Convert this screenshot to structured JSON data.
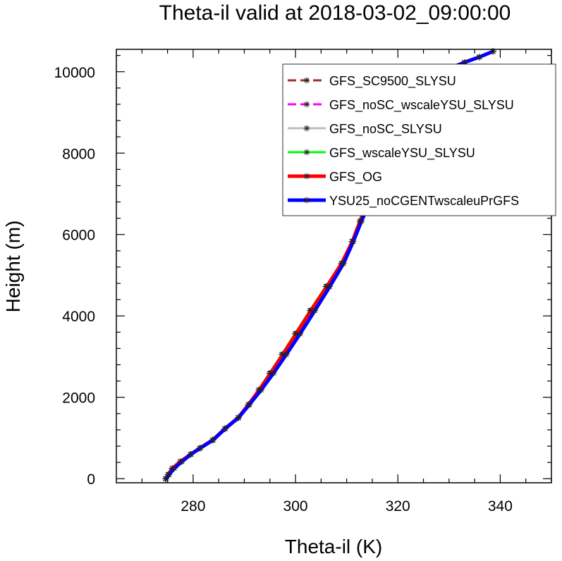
{
  "chart_data": {
    "type": "line",
    "title": "Theta-il valid at 2018-03-02_09:00:00",
    "xlabel": "Theta-il (K)",
    "ylabel": "Height (m)",
    "xlim": [
      265,
      350
    ],
    "ylim": [
      -100,
      10550
    ],
    "xticks": [
      280,
      300,
      320,
      340
    ],
    "yticks": [
      0,
      2000,
      4000,
      6000,
      8000,
      10000
    ],
    "grid": false,
    "legend_position": "top-right",
    "series": [
      {
        "name": "GFS_SC9500_SLYSU",
        "color": "#a52a2a",
        "dash": "12,6",
        "width": 3,
        "x": [
          274.7,
          275.1,
          275.9,
          277.5,
          279.5,
          281.3,
          283.8,
          286.2,
          288.8,
          290.8,
          293.0,
          295.3,
          297.7,
          300.3,
          303.2,
          306.2,
          309.1,
          311.1,
          312.6,
          314.2,
          315.3,
          316.2,
          316.8,
          317.1,
          317.4,
          319.9,
          322.5,
          325.5,
          329.0,
          333.0,
          335.9,
          338.6
        ],
        "y": [
          0,
          100,
          250,
          420,
          600,
          750,
          950,
          1230,
          1500,
          1820,
          2180,
          2590,
          3050,
          3560,
          4130,
          4720,
          5290,
          5830,
          6330,
          6820,
          7300,
          7780,
          8230,
          8630,
          8930,
          9330,
          9580,
          9820,
          10020,
          10230,
          10360,
          10500
        ]
      },
      {
        "name": "GFS_noSC_wscaleYSU_SLYSU",
        "color": "#ff00ff",
        "dash": "12,6",
        "width": 3,
        "x": [
          274.7,
          275.1,
          275.9,
          277.5,
          279.5,
          281.3,
          283.8,
          286.2,
          288.8,
          290.8,
          292.9,
          295.1,
          297.5,
          300.1,
          303.0,
          306.1,
          309.0,
          311.1,
          312.6,
          314.2,
          315.3,
          316.2,
          316.8,
          317.1,
          317.4,
          319.9,
          322.5,
          325.5,
          329.0,
          333.0,
          335.9,
          338.6
        ],
        "y": [
          0,
          100,
          250,
          420,
          600,
          750,
          950,
          1230,
          1500,
          1820,
          2180,
          2590,
          3050,
          3560,
          4130,
          4720,
          5290,
          5830,
          6330,
          6820,
          7300,
          7780,
          8230,
          8630,
          8930,
          9330,
          9580,
          9820,
          10020,
          10230,
          10360,
          10500
        ]
      },
      {
        "name": "GFS_noSC_SLYSU",
        "color": "#bebebe",
        "dash": "",
        "width": 3,
        "x": [
          274.7,
          275.1,
          275.9,
          277.5,
          279.5,
          281.3,
          283.8,
          286.2,
          288.8,
          290.8,
          292.9,
          295.2,
          297.6,
          300.2,
          303.1,
          306.1,
          309.0,
          311.1,
          312.6,
          314.2,
          315.3,
          316.2,
          316.8,
          317.1,
          317.4,
          319.9,
          322.5,
          325.5,
          329.0,
          333.0,
          335.9,
          338.6
        ],
        "y": [
          0,
          100,
          250,
          420,
          600,
          750,
          950,
          1230,
          1500,
          1820,
          2180,
          2590,
          3050,
          3560,
          4130,
          4720,
          5290,
          5830,
          6330,
          6820,
          7300,
          7780,
          8230,
          8630,
          8930,
          9330,
          9580,
          9820,
          10020,
          10230,
          10360,
          10500
        ]
      },
      {
        "name": "GFS_wscaleYSU_SLYSU",
        "color": "#00ff00",
        "dash": "",
        "width": 3,
        "x": [
          274.7,
          275.1,
          275.9,
          277.5,
          279.5,
          281.3,
          283.8,
          286.2,
          288.8,
          290.8,
          292.8,
          294.9,
          297.3,
          299.9,
          302.8,
          305.9,
          309.0,
          311.0,
          312.6,
          314.2,
          315.3,
          316.2,
          316.8,
          317.1,
          317.4,
          319.9,
          322.5,
          325.5,
          329.0,
          333.0,
          335.9,
          338.6
        ],
        "y": [
          0,
          100,
          250,
          420,
          600,
          750,
          950,
          1230,
          1500,
          1820,
          2180,
          2590,
          3050,
          3560,
          4130,
          4720,
          5290,
          5830,
          6330,
          6820,
          7300,
          7780,
          8230,
          8630,
          8930,
          9330,
          9580,
          9820,
          10020,
          10230,
          10360,
          10500
        ]
      },
      {
        "name": "GFS_OG",
        "color": "#ff0000",
        "dash": "",
        "width": 5,
        "x": [
          274.7,
          275.1,
          275.9,
          277.5,
          279.5,
          281.3,
          283.8,
          286.2,
          288.8,
          290.8,
          292.9,
          295.1,
          297.5,
          300.1,
          303.0,
          306.1,
          309.0,
          311.1,
          312.6,
          314.2,
          315.3,
          316.2,
          316.8,
          317.1,
          317.4,
          319.9,
          322.5,
          325.5,
          329.0,
          333.0,
          335.9,
          338.6
        ],
        "y": [
          0,
          100,
          250,
          420,
          600,
          750,
          950,
          1230,
          1500,
          1820,
          2180,
          2590,
          3050,
          3560,
          4130,
          4720,
          5290,
          5830,
          6330,
          6820,
          7300,
          7780,
          8230,
          8630,
          8930,
          9330,
          9580,
          9820,
          10020,
          10230,
          10360,
          10500
        ]
      },
      {
        "name": "YSU25_noCGENTwscaleuPrGFS",
        "color": "#0000ff",
        "dash": "",
        "width": 5,
        "x": [
          274.6,
          275.3,
          276.3,
          277.8,
          279.6,
          281.4,
          283.9,
          286.3,
          288.9,
          291.0,
          293.3,
          295.7,
          298.2,
          300.9,
          303.8,
          306.7,
          309.4,
          311.3,
          312.9,
          314.6,
          315.6,
          316.4,
          316.9,
          317.1,
          317.4,
          319.9,
          322.5,
          325.5,
          329.0,
          333.0,
          335.9,
          338.6
        ],
        "y": [
          0,
          100,
          250,
          420,
          600,
          750,
          950,
          1230,
          1500,
          1820,
          2180,
          2590,
          3050,
          3560,
          4130,
          4720,
          5290,
          5830,
          6330,
          6820,
          7300,
          7780,
          8230,
          8630,
          8930,
          9330,
          9580,
          9820,
          10020,
          10230,
          10360,
          10500
        ]
      }
    ]
  }
}
